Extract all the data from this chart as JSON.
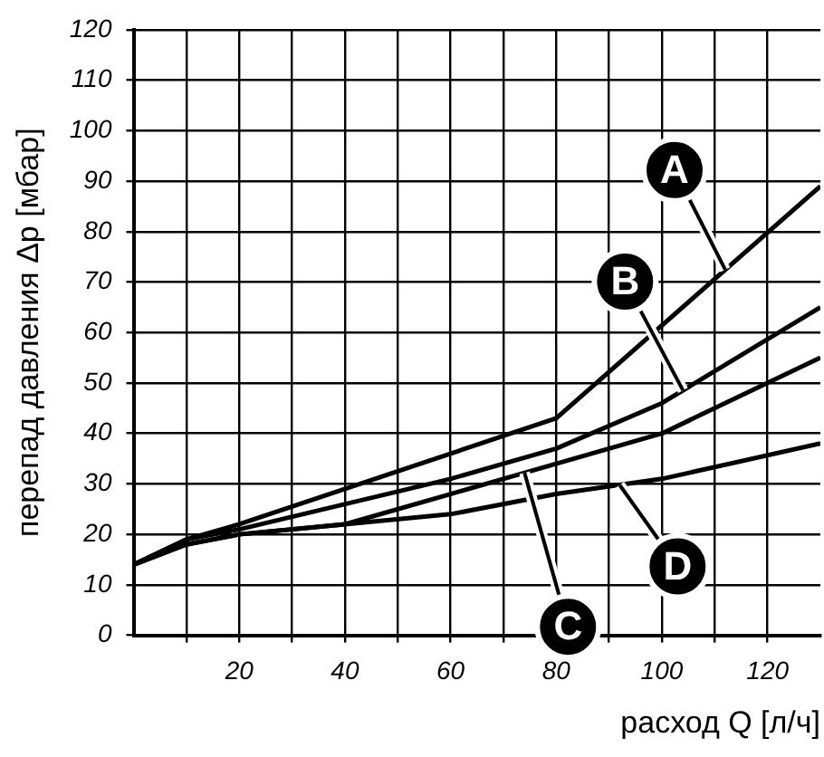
{
  "chart_data": {
    "type": "line",
    "xlabel": "расход Q [л/ч]",
    "ylabel": "перепад давления Δp [мбар]",
    "xlim": [
      0,
      130
    ],
    "ylim": [
      0,
      120
    ],
    "xticks": [
      {
        "value": 10,
        "label": null
      },
      20,
      {
        "value": 30,
        "label": null
      },
      40,
      {
        "value": 50,
        "label": null
      },
      60,
      {
        "value": 70,
        "label": null
      },
      80,
      {
        "value": 90,
        "label": null
      },
      100,
      {
        "value": 110,
        "label": null
      },
      120
    ],
    "yticks": [
      0,
      10,
      20,
      30,
      40,
      50,
      60,
      70,
      80,
      90,
      100,
      110,
      120
    ],
    "grid": true,
    "legend": false,
    "marker": "none",
    "line_style": "solid",
    "series": [
      {
        "name": "A",
        "color": "#000000",
        "x": [
          0,
          10,
          20,
          80,
          130
        ],
        "values": [
          14,
          19,
          22,
          43,
          89
        ]
      },
      {
        "name": "B",
        "color": "#000000",
        "x": [
          0,
          10,
          20,
          60,
          80,
          100,
          130
        ],
        "values": [
          14,
          19,
          21,
          31,
          37,
          46,
          65
        ]
      },
      {
        "name": "C",
        "color": "#000000",
        "x": [
          0,
          10,
          20,
          40,
          60,
          80,
          100,
          130
        ],
        "values": [
          14,
          18,
          20,
          22,
          28,
          34,
          40,
          55
        ]
      },
      {
        "name": "D",
        "color": "#000000",
        "x": [
          0,
          10,
          20,
          40,
          60,
          80,
          100,
          130
        ],
        "values": [
          14,
          18,
          20,
          22,
          24,
          28,
          31,
          38
        ]
      }
    ]
  }
}
